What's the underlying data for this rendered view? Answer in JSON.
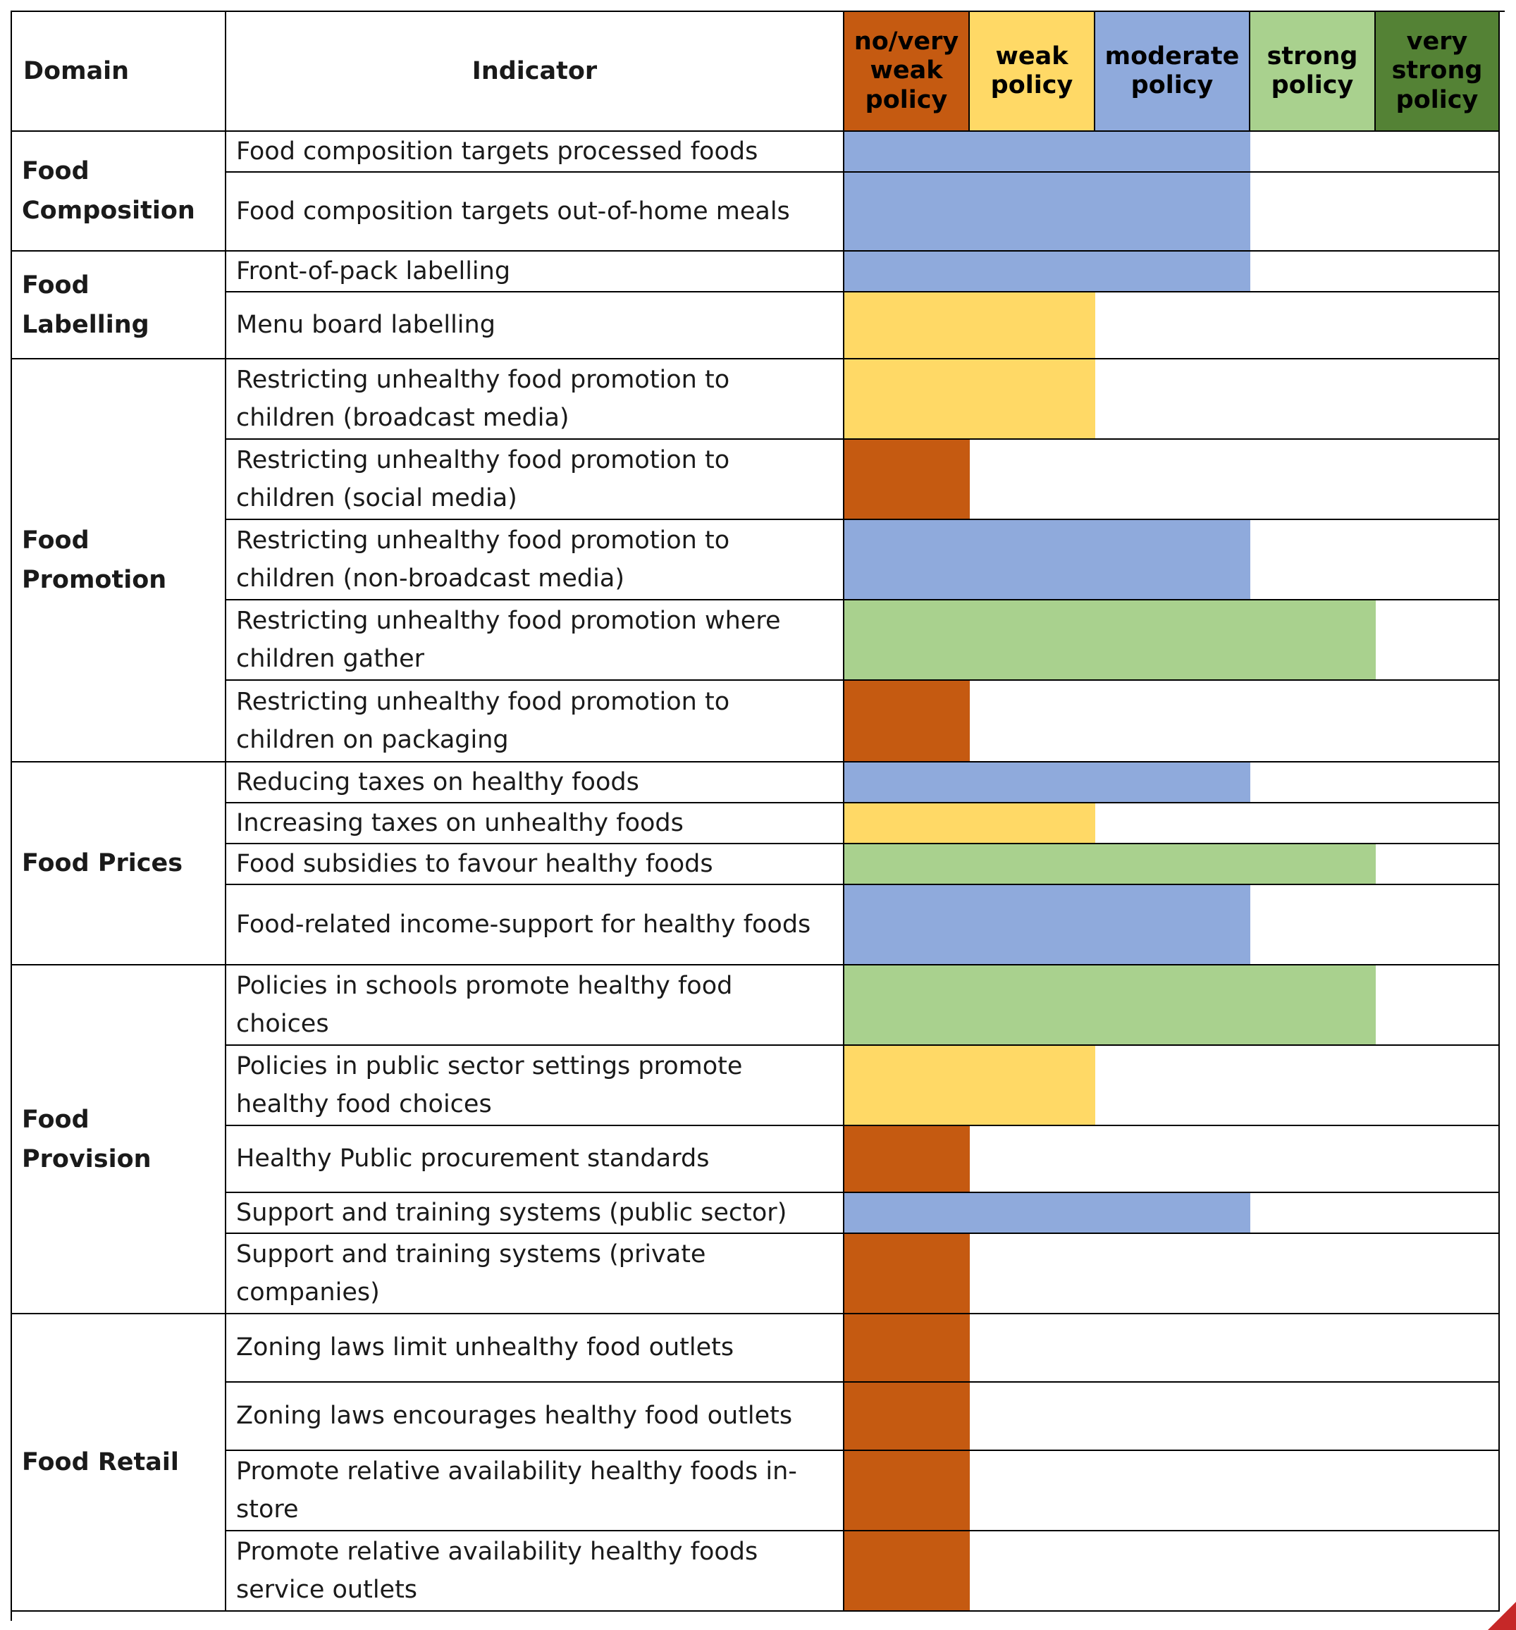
{
  "headers": {
    "domain": "Domain",
    "indicator": "Indicator",
    "levels": [
      "no/very weak policy",
      "weak policy",
      "moderate policy",
      "strong policy",
      "very strong policy"
    ]
  },
  "colors": {
    "no_very_weak": "#c55a11",
    "weak": "#ffd966",
    "moderate": "#8faadc",
    "strong": "#a9d18e",
    "very_strong": "#548235"
  },
  "domains": [
    {
      "name": "Food Composition",
      "indicators": [
        {
          "label": "Food composition targets processed foods",
          "level": 3
        },
        {
          "label": "Food composition targets out-of-home meals",
          "level": 3
        }
      ]
    },
    {
      "name": "Food Labelling",
      "indicators": [
        {
          "label": "Front-of-pack labelling",
          "level": 3
        },
        {
          "label": "Menu board labelling",
          "level": 2
        }
      ]
    },
    {
      "name": "Food Promotion",
      "indicators": [
        {
          "label": "Restricting unhealthy food promotion to children (broadcast media)",
          "level": 2
        },
        {
          "label": "Restricting unhealthy food promotion to children (social media)",
          "level": 1
        },
        {
          "label": "Restricting unhealthy food promotion to children (non-broadcast media)",
          "level": 3
        },
        {
          "label": "Restricting unhealthy food promotion where children gather",
          "level": 4
        },
        {
          "label": "Restricting unhealthy food promotion to children on packaging",
          "level": 1
        }
      ]
    },
    {
      "name": "Food Prices",
      "indicators": [
        {
          "label": "Reducing taxes on healthy foods",
          "level": 3
        },
        {
          "label": "Increasing taxes on unhealthy foods",
          "level": 2
        },
        {
          "label": "Food subsidies to favour healthy foods",
          "level": 4
        },
        {
          "label": "Food-related income-support for healthy foods",
          "level": 3
        }
      ]
    },
    {
      "name": "Food Provision",
      "indicators": [
        {
          "label": "Policies in schools promote healthy food choices",
          "level": 4
        },
        {
          "label": "Policies in public sector settings promote healthy food choices",
          "level": 2
        },
        {
          "label": "Healthy Public procurement standards",
          "level": 1
        },
        {
          "label": "Support and training systems (public sector)",
          "level": 3
        },
        {
          "label": "Support and training systems (private companies)",
          "level": 1
        }
      ]
    },
    {
      "name": "Food Retail",
      "indicators": [
        {
          "label": "Zoning laws limit unhealthy food outlets",
          "level": 1
        },
        {
          "label": "Zoning laws encourages healthy food outlets",
          "level": 1
        },
        {
          "label": "Promote relative availability healthy foods in-store",
          "level": 1
        },
        {
          "label": "Promote relative availability healthy foods service outlets",
          "level": 1
        }
      ]
    }
  ]
}
